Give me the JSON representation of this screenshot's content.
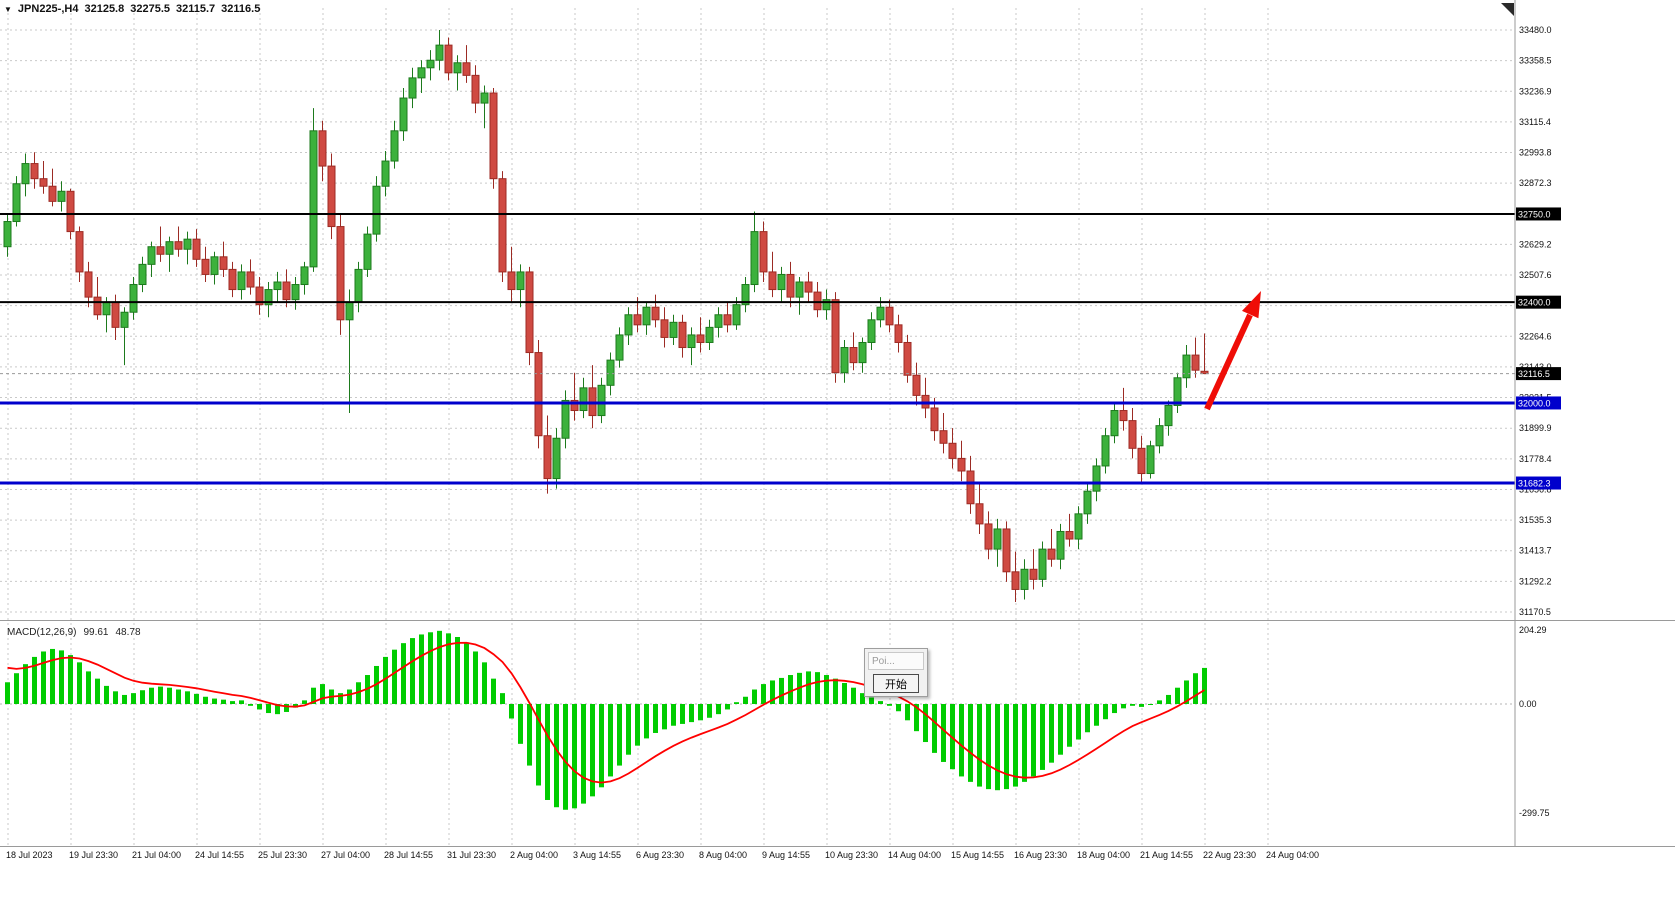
{
  "header": {
    "dropdown_icon": "▼",
    "title": "JPN225-,H4",
    "open": "32125.8",
    "high": "32275.5",
    "low": "32115.7",
    "close": "32116.5"
  },
  "colors": {
    "up": "#3cb13c",
    "up_border": "#1d7a1d",
    "down": "#cf4a42",
    "down_border": "#9c2b24",
    "macd_bar": "#00cc00",
    "signal": "#ff0000",
    "grid": "#c9c9c9",
    "black_line": "#000000",
    "blue_line": "#0000cc",
    "separator": "#9a9a9a",
    "axis_text": "#111111",
    "arrow": "#ef0d07"
  },
  "popup": {
    "top_button": "Poi...",
    "start_button": "开始"
  },
  "chart_data": {
    "type": "candlestick",
    "symbol": "JPN225-",
    "timeframe": "H4",
    "price_axis": {
      "ticks": [
        "33480.0",
        "33358.5",
        "33236.9",
        "33115.4",
        "32993.8",
        "32872.3",
        "32750.7",
        "32629.2",
        "32507.6",
        "32386.1",
        "32264.6",
        "32143.0",
        "32021.5",
        "31899.9",
        "31778.4",
        "31656.8",
        "31535.3",
        "31413.7",
        "31292.2",
        "31170.5"
      ]
    },
    "time_axis": {
      "labels": [
        "18 Jul 2023",
        "19 Jul 23:30",
        "21 Jul 04:00",
        "24 Jul 14:55",
        "25 Jul 23:30",
        "27 Jul 04:00",
        "28 Jul 14:55",
        "31 Jul 23:30",
        "2 Aug 04:00",
        "3 Aug 14:55",
        "6 Aug 23:30",
        "8 Aug 04:00",
        "9 Aug 14:55",
        "10 Aug 23:30",
        "14 Aug 04:00",
        "15 Aug 14:55",
        "16 Aug 23:30",
        "18 Aug 04:00",
        "21 Aug 14:55",
        "22 Aug 23:30",
        "24 Aug 04:00"
      ]
    },
    "hlines": [
      {
        "price": 32750.0,
        "label": "32750.0",
        "style": "black"
      },
      {
        "price": 32400.0,
        "label": "32400.0",
        "style": "black"
      },
      {
        "price": 32000.0,
        "label": "32000.0",
        "style": "blue"
      },
      {
        "price": 31682.3,
        "label": "31682.3",
        "style": "blue"
      }
    ],
    "current_price": {
      "price": 32116.5,
      "label": "32116.5"
    },
    "candles": [
      [
        32620,
        32750,
        32580,
        32720
      ],
      [
        32720,
        32900,
        32700,
        32870
      ],
      [
        32870,
        32990,
        32820,
        32950
      ],
      [
        32950,
        32995,
        32850,
        32890
      ],
      [
        32890,
        32960,
        32830,
        32860
      ],
      [
        32860,
        32930,
        32780,
        32800
      ],
      [
        32800,
        32880,
        32760,
        32840
      ],
      [
        32840,
        32850,
        32650,
        32680
      ],
      [
        32680,
        32700,
        32480,
        32520
      ],
      [
        32520,
        32560,
        32380,
        32420
      ],
      [
        32420,
        32500,
        32330,
        32350
      ],
      [
        32350,
        32420,
        32280,
        32400
      ],
      [
        32400,
        32430,
        32250,
        32300
      ],
      [
        32300,
        32380,
        32150,
        32360
      ],
      [
        32360,
        32500,
        32330,
        32470
      ],
      [
        32470,
        32580,
        32440,
        32550
      ],
      [
        32550,
        32640,
        32500,
        32620
      ],
      [
        32620,
        32700,
        32560,
        32590
      ],
      [
        32590,
        32660,
        32520,
        32640
      ],
      [
        32640,
        32700,
        32580,
        32610
      ],
      [
        32610,
        32680,
        32550,
        32650
      ],
      [
        32650,
        32690,
        32540,
        32570
      ],
      [
        32570,
        32620,
        32480,
        32510
      ],
      [
        32510,
        32600,
        32470,
        32580
      ],
      [
        32580,
        32640,
        32500,
        32530
      ],
      [
        32530,
        32560,
        32420,
        32450
      ],
      [
        32450,
        32550,
        32410,
        32520
      ],
      [
        32520,
        32570,
        32430,
        32460
      ],
      [
        32460,
        32500,
        32350,
        32390
      ],
      [
        32390,
        32480,
        32340,
        32450
      ],
      [
        32450,
        32520,
        32400,
        32480
      ],
      [
        32480,
        32530,
        32380,
        32410
      ],
      [
        32410,
        32500,
        32370,
        32470
      ],
      [
        32470,
        32560,
        32430,
        32540
      ],
      [
        32540,
        33170,
        32520,
        33080
      ],
      [
        33080,
        33120,
        32880,
        32940
      ],
      [
        32940,
        32990,
        32650,
        32700
      ],
      [
        32700,
        32750,
        32270,
        32330
      ],
      [
        32330,
        32450,
        31960,
        32400
      ],
      [
        32400,
        32560,
        32360,
        32530
      ],
      [
        32530,
        32700,
        32500,
        32670
      ],
      [
        32670,
        32900,
        32640,
        32860
      ],
      [
        32860,
        33000,
        32820,
        32960
      ],
      [
        32960,
        33120,
        32930,
        33080
      ],
      [
        33080,
        33250,
        33040,
        33210
      ],
      [
        33210,
        33330,
        33170,
        33290
      ],
      [
        33290,
        33360,
        33230,
        33330
      ],
      [
        33330,
        33400,
        33280,
        33360
      ],
      [
        33360,
        33480,
        33320,
        33420
      ],
      [
        33420,
        33450,
        33280,
        33310
      ],
      [
        33310,
        33380,
        33240,
        33350
      ],
      [
        33350,
        33420,
        33270,
        33300
      ],
      [
        33300,
        33340,
        33150,
        33190
      ],
      [
        33190,
        33260,
        33090,
        33230
      ],
      [
        33230,
        33250,
        32850,
        32890
      ],
      [
        32890,
        32920,
        32480,
        32520
      ],
      [
        32520,
        32620,
        32400,
        32450
      ],
      [
        32450,
        32550,
        32380,
        32520
      ],
      [
        32520,
        32540,
        32150,
        32200
      ],
      [
        32200,
        32250,
        31820,
        31870
      ],
      [
        31870,
        31950,
        31640,
        31700
      ],
      [
        31700,
        31900,
        31660,
        31860
      ],
      [
        31860,
        32050,
        31820,
        32010
      ],
      [
        32010,
        32120,
        31930,
        31970
      ],
      [
        31970,
        32100,
        31940,
        32060
      ],
      [
        32060,
        32150,
        31900,
        31950
      ],
      [
        31950,
        32100,
        31920,
        32070
      ],
      [
        32070,
        32200,
        32030,
        32170
      ],
      [
        32170,
        32300,
        32140,
        32270
      ],
      [
        32270,
        32380,
        32230,
        32350
      ],
      [
        32350,
        32420,
        32280,
        32310
      ],
      [
        32310,
        32400,
        32270,
        32380
      ],
      [
        32380,
        32430,
        32300,
        32330
      ],
      [
        32330,
        32380,
        32220,
        32260
      ],
      [
        32260,
        32350,
        32230,
        32320
      ],
      [
        32320,
        32350,
        32180,
        32220
      ],
      [
        32220,
        32300,
        32150,
        32270
      ],
      [
        32270,
        32340,
        32200,
        32240
      ],
      [
        32240,
        32330,
        32210,
        32300
      ],
      [
        32300,
        32380,
        32260,
        32350
      ],
      [
        32350,
        32400,
        32280,
        32310
      ],
      [
        32310,
        32420,
        32290,
        32390
      ],
      [
        32390,
        32500,
        32360,
        32470
      ],
      [
        32470,
        32760,
        32440,
        32680
      ],
      [
        32680,
        32720,
        32480,
        32520
      ],
      [
        32520,
        32600,
        32420,
        32450
      ],
      [
        32450,
        32540,
        32400,
        32510
      ],
      [
        32510,
        32560,
        32380,
        32420
      ],
      [
        32420,
        32500,
        32350,
        32480
      ],
      [
        32480,
        32520,
        32400,
        32440
      ],
      [
        32440,
        32480,
        32340,
        32370
      ],
      [
        32370,
        32450,
        32330,
        32410
      ],
      [
        32410,
        32440,
        32080,
        32120
      ],
      [
        32120,
        32250,
        32080,
        32220
      ],
      [
        32220,
        32280,
        32130,
        32160
      ],
      [
        32160,
        32260,
        32120,
        32240
      ],
      [
        32240,
        32360,
        32210,
        32330
      ],
      [
        32330,
        32420,
        32300,
        32380
      ],
      [
        32380,
        32410,
        32280,
        32310
      ],
      [
        32310,
        32350,
        32200,
        32240
      ],
      [
        32240,
        32270,
        32080,
        32110
      ],
      [
        32110,
        32160,
        31990,
        32030
      ],
      [
        32030,
        32100,
        31940,
        31980
      ],
      [
        31980,
        32020,
        31850,
        31890
      ],
      [
        31890,
        31960,
        31800,
        31840
      ],
      [
        31840,
        31900,
        31740,
        31780
      ],
      [
        31780,
        31850,
        31690,
        31730
      ],
      [
        31730,
        31790,
        31560,
        31600
      ],
      [
        31600,
        31680,
        31480,
        31520
      ],
      [
        31520,
        31570,
        31380,
        31420
      ],
      [
        31420,
        31540,
        31350,
        31500
      ],
      [
        31500,
        31530,
        31290,
        31330
      ],
      [
        31330,
        31410,
        31210,
        31260
      ],
      [
        31260,
        31380,
        31220,
        31340
      ],
      [
        31340,
        31420,
        31260,
        31300
      ],
      [
        31300,
        31450,
        31270,
        31420
      ],
      [
        31420,
        31500,
        31350,
        31380
      ],
      [
        31380,
        31520,
        31340,
        31490
      ],
      [
        31490,
        31560,
        31430,
        31460
      ],
      [
        31460,
        31590,
        31420,
        31560
      ],
      [
        31560,
        31680,
        31520,
        31650
      ],
      [
        31650,
        31780,
        31610,
        31750
      ],
      [
        31750,
        31900,
        31720,
        31870
      ],
      [
        31870,
        32000,
        31840,
        31970
      ],
      [
        31970,
        32060,
        31890,
        31930
      ],
      [
        31930,
        31980,
        31780,
        31820
      ],
      [
        31820,
        31870,
        31680,
        31720
      ],
      [
        31720,
        31850,
        31700,
        31830
      ],
      [
        31830,
        31940,
        31800,
        31910
      ],
      [
        31910,
        32010,
        31870,
        31990
      ],
      [
        31990,
        32120,
        31960,
        32100
      ],
      [
        32100,
        32230,
        32060,
        32190
      ],
      [
        32190,
        32260,
        32100,
        32130
      ],
      [
        32125.8,
        32275.5,
        32115.7,
        32116.5
      ]
    ],
    "macd": {
      "label": "MACD(12,26,9)",
      "main_value": "99.61",
      "signal_value": "48.78",
      "axis_max": "204.29",
      "axis_zero": "0.00",
      "axis_min": "-299.75",
      "signal_seed": 110,
      "values": [
        60,
        85,
        110,
        130,
        145,
        152,
        148,
        135,
        115,
        90,
        70,
        50,
        35,
        25,
        30,
        38,
        45,
        48,
        45,
        40,
        35,
        28,
        20,
        15,
        12,
        8,
        10,
        -5,
        -15,
        -25,
        -28,
        -22,
        -10,
        10,
        45,
        55,
        40,
        30,
        40,
        60,
        80,
        105,
        130,
        150,
        168,
        182,
        192,
        198,
        202,
        195,
        185,
        170,
        145,
        115,
        70,
        30,
        -40,
        -110,
        -170,
        -225,
        -265,
        -285,
        -292,
        -288,
        -275,
        -255,
        -230,
        -200,
        -170,
        -140,
        -115,
        -95,
        -80,
        -70,
        -60,
        -55,
        -50,
        -45,
        -38,
        -28,
        -15,
        5,
        20,
        40,
        55,
        65,
        72,
        80,
        86,
        90,
        88,
        80,
        70,
        58,
        45,
        30,
        18,
        8,
        -5,
        -20,
        -45,
        -75,
        -105,
        -135,
        -160,
        -180,
        -200,
        -215,
        -228,
        -235,
        -238,
        -235,
        -228,
        -215,
        -200,
        -182,
        -162,
        -140,
        -118,
        -98,
        -78,
        -60,
        -42,
        -25,
        -12,
        -5,
        -8,
        0,
        10,
        25,
        45,
        65,
        85,
        99.61
      ]
    },
    "annotations": {
      "arrow_color": "#ef0d07"
    }
  }
}
